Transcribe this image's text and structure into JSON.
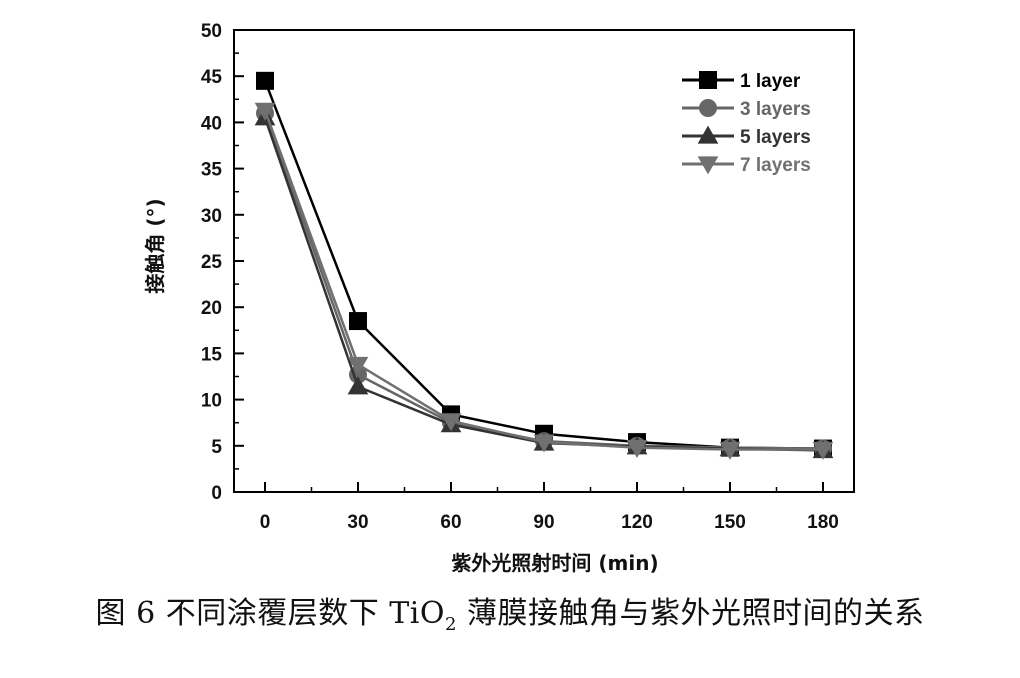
{
  "chart_data": {
    "type": "line",
    "title": "",
    "xlabel": "紫外光照射时间 (min)",
    "ylabel": "接触角 (°)",
    "x": [
      0,
      30,
      60,
      90,
      120,
      150,
      180
    ],
    "xlim": [
      -10,
      190
    ],
    "ylim": [
      0,
      50
    ],
    "xticks": [
      "0",
      "30",
      "60",
      "90",
      "120",
      "150",
      "180"
    ],
    "yticks": [
      "0",
      "5",
      "10",
      "15",
      "20",
      "25",
      "30",
      "35",
      "40",
      "45",
      "50"
    ],
    "legend_position": "top-right",
    "grid": false,
    "series": [
      {
        "name": "1 layer",
        "marker": "square",
        "color": "#000000",
        "values": [
          44.5,
          18.5,
          8.4,
          6.3,
          5.4,
          4.8,
          4.7
        ]
      },
      {
        "name": "3 layers",
        "marker": "circle",
        "color": "#666666",
        "values": [
          41.0,
          12.7,
          7.5,
          5.5,
          5.0,
          4.8,
          4.7
        ]
      },
      {
        "name": "5 layers",
        "marker": "triangle-up",
        "color": "#333333",
        "values": [
          40.5,
          11.4,
          7.3,
          5.3,
          4.9,
          4.7,
          4.5
        ]
      },
      {
        "name": "7 layers",
        "marker": "triangle-down",
        "color": "#707070",
        "values": [
          41.3,
          13.8,
          7.7,
          5.4,
          4.8,
          4.6,
          4.6
        ]
      }
    ]
  },
  "caption": {
    "prefix": "图 6 不同涂覆层数下 TiO",
    "subscript": "2",
    "suffix": " 薄膜接触角与紫外光照时间的关系"
  }
}
